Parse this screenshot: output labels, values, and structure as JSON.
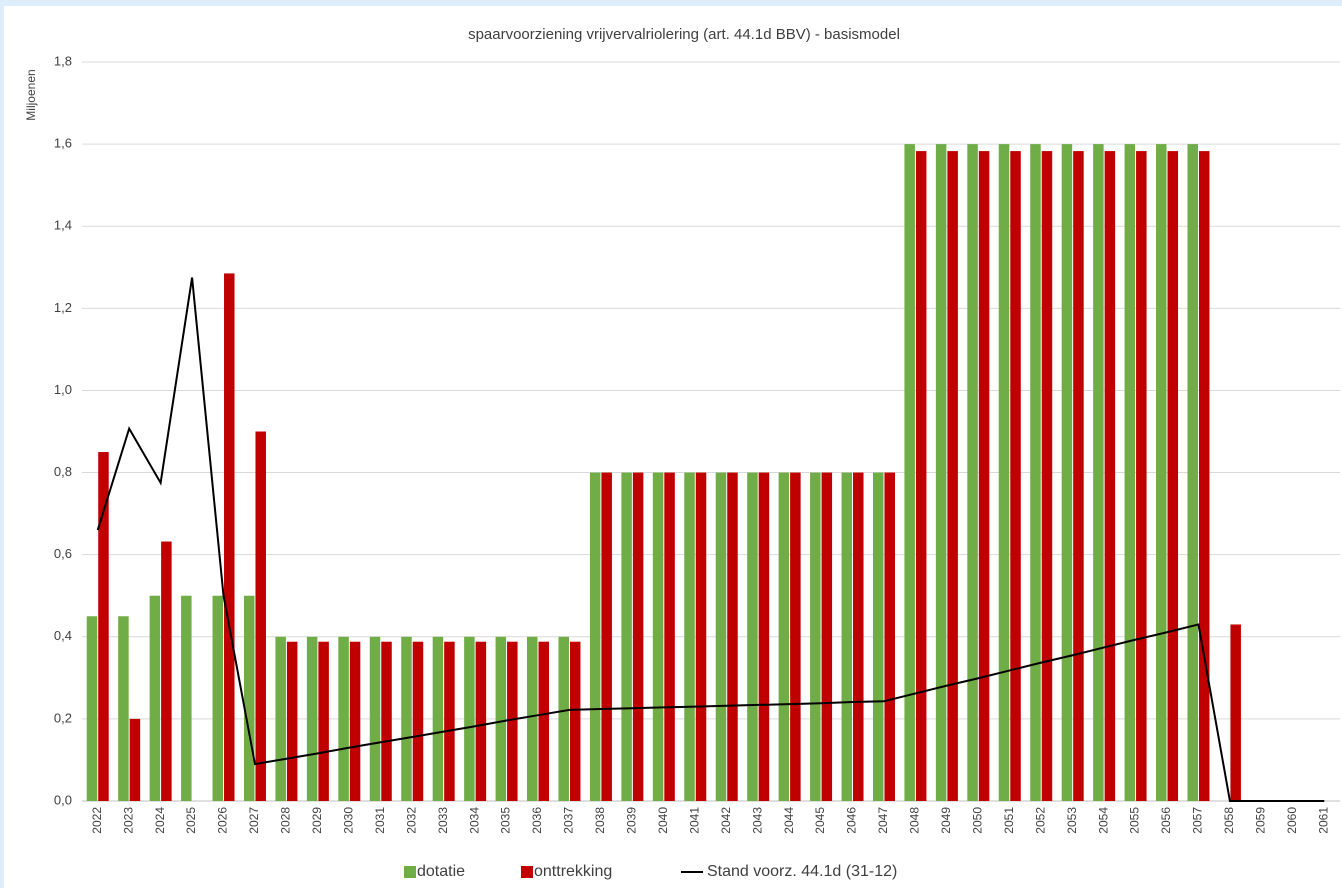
{
  "chart_data": {
    "type": "bar-line",
    "title": "spaarvoorziening vrijvervalriolering (art. 44.1d BBV) - basismodel",
    "y_axis_label": "Miljoenen",
    "categories": [
      "2022",
      "2023",
      "2024",
      "2025",
      "2026",
      "2027",
      "2028",
      "2029",
      "2030",
      "2031",
      "2032",
      "2033",
      "2034",
      "2035",
      "2036",
      "2037",
      "2038",
      "2039",
      "2040",
      "2041",
      "2042",
      "2043",
      "2044",
      "2045",
      "2046",
      "2047",
      "2048",
      "2049",
      "2050",
      "2051",
      "2052",
      "2053",
      "2054",
      "2055",
      "2056",
      "2057",
      "2058",
      "2059",
      "2060",
      "2061"
    ],
    "series": [
      {
        "name": "dotatie",
        "type": "bar",
        "color": "#70ad47",
        "values": [
          0.45,
          0.45,
          0.5,
          0.5,
          0.5,
          0.5,
          0.4,
          0.4,
          0.4,
          0.4,
          0.4,
          0.4,
          0.4,
          0.4,
          0.4,
          0.4,
          0.8,
          0.8,
          0.8,
          0.8,
          0.8,
          0.8,
          0.8,
          0.8,
          0.8,
          0.8,
          1.6,
          1.6,
          1.6,
          1.6,
          1.6,
          1.6,
          1.6,
          1.6,
          1.6,
          1.6,
          0,
          0,
          0,
          0
        ]
      },
      {
        "name": "onttrekking",
        "type": "bar",
        "color": "#c00000",
        "values": [
          0.85,
          0.2,
          0.632,
          0,
          1.285,
          0.9,
          0.388,
          0.388,
          0.388,
          0.388,
          0.388,
          0.388,
          0.388,
          0.388,
          0.388,
          0.388,
          0.8,
          0.8,
          0.8,
          0.8,
          0.8,
          0.8,
          0.8,
          0.8,
          0.8,
          0.8,
          1.583,
          1.583,
          1.583,
          1.583,
          1.583,
          1.583,
          1.583,
          1.583,
          1.583,
          1.583,
          0.43,
          0,
          0,
          0
        ]
      },
      {
        "name": "Stand voorz. 44.1d (31-12)",
        "type": "line",
        "color": "#000000",
        "values": [
          0.66,
          0.907,
          0.775,
          1.275,
          0.5,
          0.09,
          0.103,
          0.116,
          0.13,
          0.143,
          0.156,
          0.169,
          0.182,
          0.196,
          0.209,
          0.222,
          0.224,
          0.226,
          0.228,
          0.23,
          0.232,
          0.234,
          0.236,
          0.238,
          0.241,
          0.243,
          0.262,
          0.281,
          0.299,
          0.318,
          0.337,
          0.355,
          0.374,
          0.393,
          0.411,
          0.43,
          0,
          0,
          0,
          0
        ]
      }
    ],
    "ylim": [
      0,
      1.8
    ],
    "yticks": [
      {
        "value": 0,
        "label": "0,0"
      },
      {
        "value": 0.2,
        "label": "0,2"
      },
      {
        "value": 0.4,
        "label": "0,4"
      },
      {
        "value": 0.6,
        "label": "0,6"
      },
      {
        "value": 0.8,
        "label": "0,8"
      },
      {
        "value": 1.0,
        "label": "1,0"
      },
      {
        "value": 1.2,
        "label": "1,2"
      },
      {
        "value": 1.4,
        "label": "1,4"
      },
      {
        "value": 1.6,
        "label": "1,6"
      },
      {
        "value": 1.8,
        "label": "1,8"
      }
    ],
    "grid": true,
    "legend": "bottom"
  }
}
